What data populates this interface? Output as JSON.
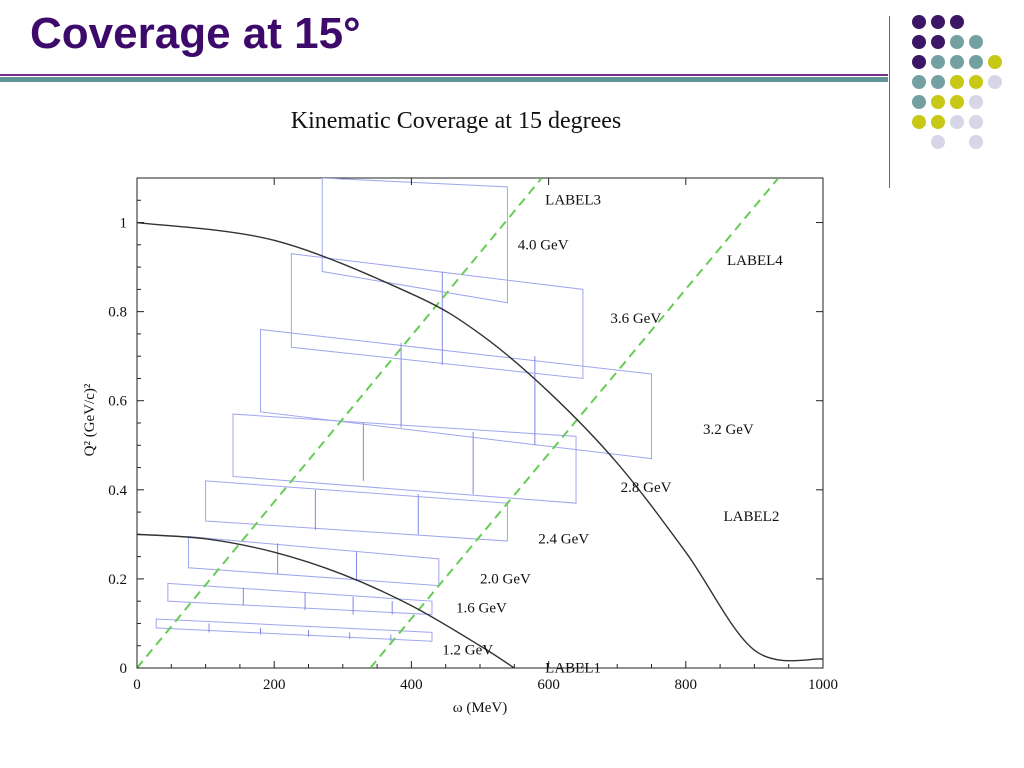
{
  "slide": {
    "title": "Coverage at 15°",
    "colors": {
      "title": "#3d0a6b",
      "rule_purple": "#7a2c8a",
      "rule_teal": "#5f9595",
      "dot_purple": "#3d1565",
      "dot_teal": "#73a1a1",
      "dot_yellow": "#c8c816",
      "dot_lavender": "#d6d6e6"
    },
    "deco_dots": [
      [
        "purple",
        "purple",
        "purple",
        "",
        "",
        ""
      ],
      [
        "purple",
        "purple",
        "teal",
        "teal",
        "",
        ""
      ],
      [
        "purple",
        "teal",
        "teal",
        "teal",
        "yellow",
        ""
      ],
      [
        "teal",
        "teal",
        "yellow",
        "yellow",
        "lavender",
        ""
      ],
      [
        "teal",
        "yellow",
        "yellow",
        "lavender",
        "",
        ""
      ],
      [
        "yellow",
        "yellow",
        "lavender",
        "lavender",
        "",
        ""
      ],
      [
        "",
        "lavender",
        "",
        "lavender",
        "",
        ""
      ]
    ]
  },
  "chart_data": {
    "type": "line",
    "title": "Kinematic Coverage at 15 degrees",
    "xlabel": "ω (MeV)",
    "ylabel": "Q² (GeV/c)²",
    "xlim": [
      0,
      1000
    ],
    "ylim": [
      0,
      1.1
    ],
    "xticks": [
      "0",
      "200",
      "400",
      "600",
      "800",
      "1000"
    ],
    "yticks": [
      "0",
      "0.2",
      "0.4",
      "0.6",
      "0.8",
      "1"
    ],
    "xtick_values": [
      0,
      200,
      400,
      600,
      800,
      1000
    ],
    "ytick_values": [
      0,
      0.2,
      0.4,
      0.6,
      0.8,
      1.0
    ],
    "colors": {
      "curve": "#333333",
      "dashed": "#66cc55",
      "box": "#9fa6ee"
    },
    "curves": [
      {
        "points": [
          [
            0,
            1.0
          ],
          [
            200,
            0.96
          ],
          [
            400,
            0.84
          ],
          [
            500,
            0.75
          ],
          [
            600,
            0.62
          ],
          [
            700,
            0.46
          ],
          [
            800,
            0.26
          ],
          [
            900,
            0.04
          ],
          [
            1000,
            0.02
          ]
        ]
      },
      {
        "points": [
          [
            0,
            0.3
          ],
          [
            100,
            0.29
          ],
          [
            200,
            0.26
          ],
          [
            300,
            0.21
          ],
          [
            400,
            0.14
          ],
          [
            500,
            0.05
          ],
          [
            550,
            0.0
          ]
        ]
      }
    ],
    "dashed_lines": [
      {
        "points": [
          [
            0,
            0.0
          ],
          [
            590,
            1.1
          ]
        ]
      },
      {
        "points": [
          [
            340,
            0.0
          ],
          [
            935,
            1.1
          ]
        ]
      }
    ],
    "boxes": [
      {
        "label": "1.2 GeV",
        "corners": [
          [
            28,
            0.11
          ],
          [
            28,
            0.09
          ],
          [
            430,
            0.06
          ],
          [
            430,
            0.08
          ]
        ],
        "dividers": [
          [
            [
              105,
              0.1
            ],
            [
              105,
              0.08
            ]
          ],
          [
            [
              180,
              0.09
            ],
            [
              180,
              0.075
            ]
          ],
          [
            [
              250,
              0.085
            ],
            [
              250,
              0.07
            ]
          ],
          [
            [
              310,
              0.08
            ],
            [
              310,
              0.065
            ]
          ],
          [
            [
              370,
              0.075
            ],
            [
              370,
              0.06
            ]
          ]
        ]
      },
      {
        "label": "1.6 GeV",
        "corners": [
          [
            45,
            0.19
          ],
          [
            45,
            0.15
          ],
          [
            430,
            0.12
          ],
          [
            430,
            0.15
          ]
        ],
        "dividers": [
          [
            [
              155,
              0.18
            ],
            [
              155,
              0.14
            ]
          ],
          [
            [
              245,
              0.17
            ],
            [
              245,
              0.13
            ]
          ],
          [
            [
              315,
              0.16
            ],
            [
              315,
              0.12
            ]
          ],
          [
            [
              372,
              0.15
            ],
            [
              372,
              0.12
            ]
          ]
        ]
      },
      {
        "label": "2.0 GeV",
        "corners": [
          [
            75,
            0.295
          ],
          [
            75,
            0.225
          ],
          [
            440,
            0.185
          ],
          [
            440,
            0.245
          ]
        ],
        "dividers": [
          [
            [
              205,
              0.28
            ],
            [
              205,
              0.21
            ]
          ],
          [
            [
              320,
              0.26
            ],
            [
              320,
              0.195
            ]
          ]
        ]
      },
      {
        "label": "2.4 GeV",
        "corners": [
          [
            100,
            0.42
          ],
          [
            100,
            0.33
          ],
          [
            540,
            0.285
          ],
          [
            540,
            0.37
          ]
        ],
        "dividers": [
          [
            [
              260,
              0.4
            ],
            [
              260,
              0.31
            ]
          ],
          [
            [
              410,
              0.39
            ],
            [
              410,
              0.3
            ]
          ]
        ]
      },
      {
        "label": "2.8 GeV",
        "corners": [
          [
            140,
            0.57
          ],
          [
            140,
            0.43
          ],
          [
            640,
            0.37
          ],
          [
            640,
            0.52
          ]
        ],
        "dividers": [
          [
            [
              330,
              0.55
            ],
            [
              330,
              0.42
            ]
          ],
          [
            [
              490,
              0.53
            ],
            [
              490,
              0.39
            ]
          ]
        ]
      },
      {
        "label": "3.2 GeV",
        "corners": [
          [
            180,
            0.76
          ],
          [
            180,
            0.575
          ],
          [
            750,
            0.47
          ],
          [
            750,
            0.66
          ]
        ],
        "dividers": [
          [
            [
              385,
              0.73
            ],
            [
              385,
              0.54
            ]
          ],
          [
            [
              580,
              0.7
            ],
            [
              580,
              0.5
            ]
          ]
        ]
      },
      {
        "label": "3.6 GeV",
        "corners": [
          [
            225,
            0.93
          ],
          [
            225,
            0.72
          ],
          [
            650,
            0.65
          ],
          [
            650,
            0.85
          ]
        ],
        "dividers": [
          [
            [
              445,
              0.89
            ],
            [
              445,
              0.68
            ]
          ]
        ]
      },
      {
        "label": "4.0 GeV",
        "corners": [
          [
            270,
            1.1
          ],
          [
            270,
            0.89
          ],
          [
            540,
            0.82
          ],
          [
            540,
            1.08
          ]
        ],
        "dividers": []
      }
    ],
    "annotations": [
      {
        "text": "LABEL3",
        "x": 595,
        "y": 1.04
      },
      {
        "text": "4.0 GeV",
        "x": 555,
        "y": 0.94
      },
      {
        "text": "LABEL4",
        "x": 860,
        "y": 0.905
      },
      {
        "text": "3.6 GeV",
        "x": 690,
        "y": 0.775
      },
      {
        "text": "3.2 GeV",
        "x": 825,
        "y": 0.525
      },
      {
        "text": "2.8 GeV",
        "x": 705,
        "y": 0.395
      },
      {
        "text": "LABEL2",
        "x": 855,
        "y": 0.33
      },
      {
        "text": "2.4 GeV",
        "x": 585,
        "y": 0.28
      },
      {
        "text": "2.0 GeV",
        "x": 500,
        "y": 0.19
      },
      {
        "text": "1.6 GeV",
        "x": 465,
        "y": 0.125
      },
      {
        "text": "1.2 GeV",
        "x": 445,
        "y": 0.03
      },
      {
        "text": "LABEL1",
        "x": 595,
        "y": -0.01
      }
    ]
  }
}
